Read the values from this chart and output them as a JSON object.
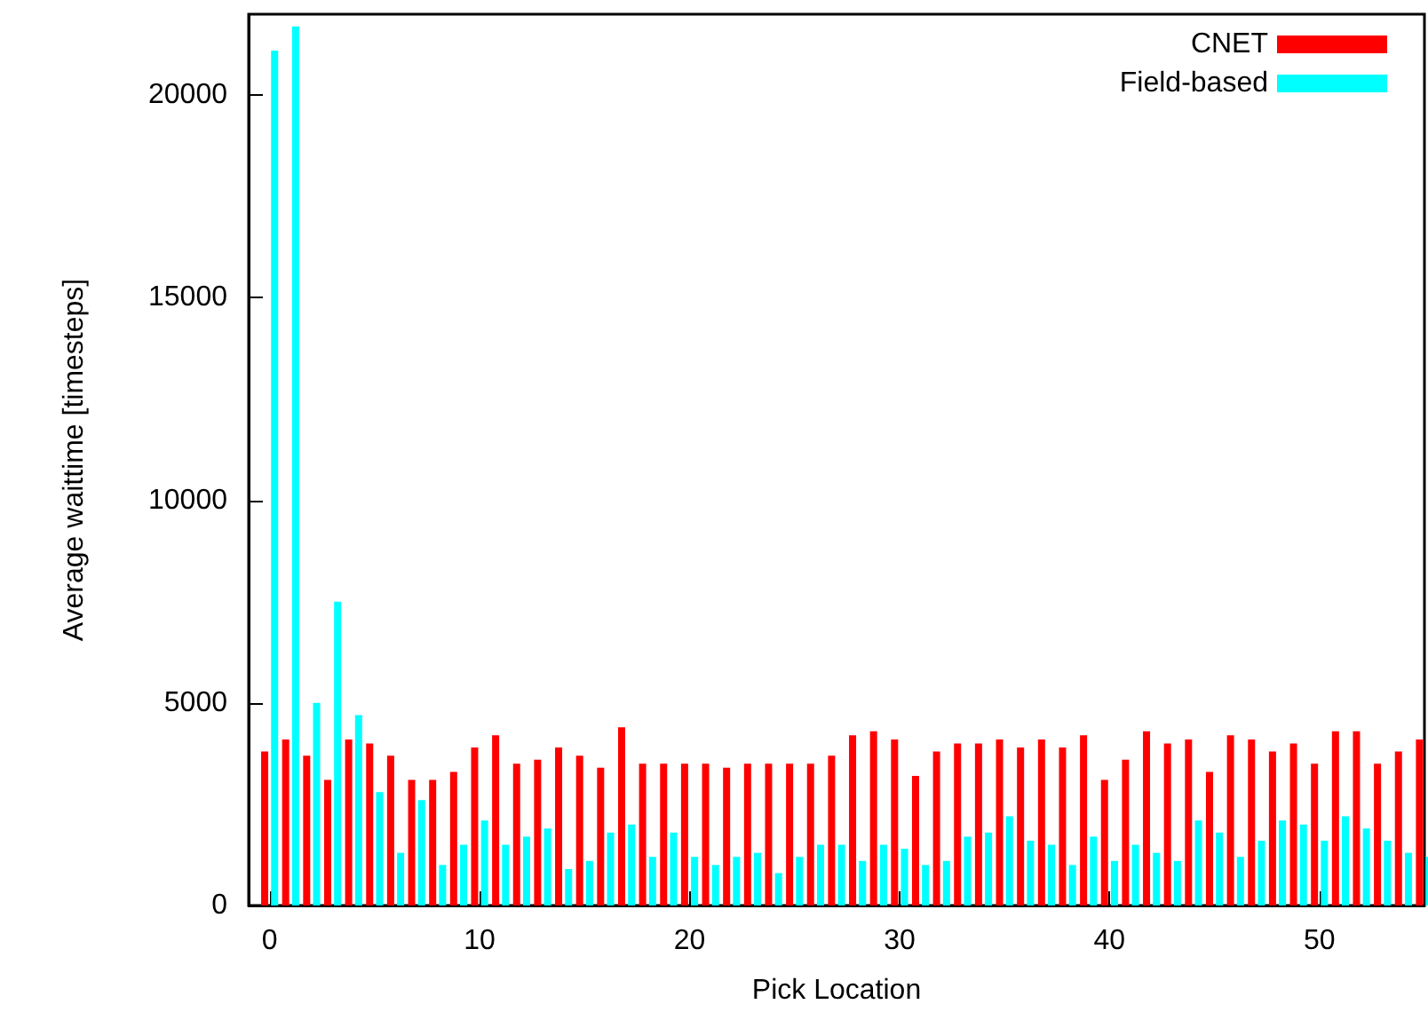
{
  "chart_data": {
    "type": "bar",
    "xlabel": "Pick Location",
    "ylabel": "Average waittime [timesteps]",
    "x": [
      0,
      1,
      2,
      3,
      4,
      5,
      6,
      7,
      8,
      9,
      10,
      11,
      12,
      13,
      14,
      15,
      16,
      17,
      18,
      19,
      20,
      21,
      22,
      23,
      24,
      25,
      26,
      27,
      28,
      29,
      30,
      31,
      32,
      33,
      34,
      35,
      36,
      37,
      38,
      39,
      40,
      41,
      42,
      43,
      44,
      45,
      46,
      47,
      48,
      49,
      50,
      51,
      52,
      53,
      54,
      55
    ],
    "series": [
      {
        "name": "CNET",
        "color": "#ff0000",
        "values": [
          3800,
          4100,
          3700,
          3100,
          4100,
          4000,
          3700,
          3100,
          3100,
          3300,
          3900,
          4200,
          3500,
          3600,
          3900,
          3700,
          3400,
          4400,
          3500,
          3500,
          3500,
          3500,
          3400,
          3500,
          3500,
          3500,
          3500,
          3700,
          4200,
          4300,
          4100,
          3200,
          3800,
          4000,
          4000,
          4100,
          3900,
          4100,
          3900,
          4200,
          3100,
          3600,
          4300,
          4000,
          4100,
          3300,
          4200,
          4100,
          3800,
          4000,
          3500,
          4300,
          4300,
          3500,
          3800,
          4100
        ]
      },
      {
        "name": "Field-based",
        "color": "#00ffff",
        "values": [
          21100,
          21700,
          5000,
          7500,
          4700,
          2800,
          1300,
          2600,
          1000,
          1500,
          2100,
          1500,
          1700,
          1900,
          900,
          1100,
          1800,
          2000,
          1200,
          1800,
          1200,
          1000,
          1200,
          1300,
          800,
          1200,
          1500,
          1500,
          1100,
          1500,
          1400,
          1000,
          1100,
          1700,
          1800,
          2200,
          1600,
          1500,
          1000,
          1700,
          1100,
          1500,
          1300,
          1100,
          2100,
          1800,
          1200,
          1600,
          2100,
          2000,
          1600,
          2200,
          1900,
          1600,
          1300,
          1200
        ]
      }
    ],
    "xlim": [
      -1,
      55
    ],
    "xticks": [
      0,
      10,
      20,
      30,
      40,
      50
    ],
    "ylim": [
      0,
      22000
    ],
    "yticks": [
      0,
      5000,
      10000,
      15000,
      20000
    ],
    "grid": false,
    "legend": "top right"
  }
}
